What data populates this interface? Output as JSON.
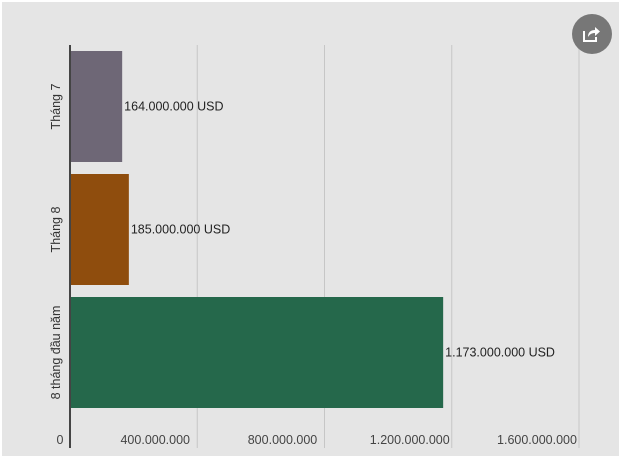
{
  "chart_data": {
    "type": "bar",
    "orientation": "horizontal",
    "categories": [
      "Tháng 7",
      "Tháng 8",
      "8 tháng đầu năm"
    ],
    "values": [
      164000000,
      185000000,
      1173000000
    ],
    "value_labels": [
      "164.000.000 USD",
      "185.000.000 USD",
      "1.173.000.000 USD"
    ],
    "colors": [
      "#6e6776",
      "#8f4d0d",
      "#25684b"
    ],
    "xlim": [
      0,
      1600000000
    ],
    "xticks": [
      0,
      400000000,
      800000000,
      1200000000,
      1600000000
    ],
    "xtick_labels": [
      "0",
      "400.000.000",
      "800.000.000",
      "1.200.000.000",
      "1.600.000.000"
    ],
    "grid": true,
    "title": "",
    "xlabel": "",
    "ylabel": ""
  },
  "share_icon": "share-icon",
  "colors": {
    "background": "#e5e5e5",
    "gridline": "#c6c6c6",
    "axis": "#444444",
    "share_button": "#777777"
  }
}
